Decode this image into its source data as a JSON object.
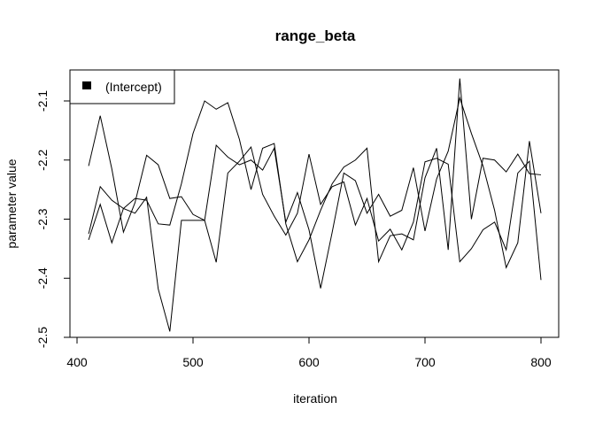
{
  "chart_data": {
    "type": "line",
    "title": "range_beta",
    "xlabel": "iteration",
    "ylabel": "parameter value",
    "xlim": [
      400,
      805
    ],
    "ylim": [
      -2.5,
      -2.05
    ],
    "x_ticks": [
      "400",
      "500",
      "600",
      "700",
      "800"
    ],
    "x_tick_values": [
      400,
      500,
      600,
      700,
      800
    ],
    "y_ticks": [
      "-2.5",
      "-2.4",
      "-2.3",
      "-2.2",
      "-2.1"
    ],
    "y_tick_values": [
      -2.5,
      -2.4,
      -2.3,
      -2.2,
      -2.1
    ],
    "legend": {
      "label": "(Intercept)",
      "position": "top-left"
    },
    "grid": false,
    "color": "#000000",
    "x": [
      410,
      420,
      430,
      440,
      450,
      460,
      470,
      480,
      490,
      500,
      510,
      520,
      530,
      540,
      550,
      560,
      570,
      580,
      590,
      600,
      610,
      620,
      630,
      640,
      650,
      660,
      670,
      680,
      690,
      700,
      710,
      720,
      730,
      740,
      750,
      760,
      770,
      780,
      790,
      800
    ],
    "series": [
      {
        "values": [
          -2.21,
          -2.125,
          -2.215,
          -2.322,
          -2.272,
          -2.192,
          -2.208,
          -2.265,
          -2.262,
          -2.292,
          -2.302,
          -2.175,
          -2.195,
          -2.208,
          -2.2,
          -2.217,
          -2.18,
          -2.305,
          -2.255,
          -2.318,
          -2.417,
          -2.322,
          -2.222,
          -2.235,
          -2.29,
          -2.258,
          -2.295,
          -2.285,
          -2.213,
          -2.32,
          -2.232,
          -2.185,
          -2.095,
          -2.155,
          -2.21,
          -2.285,
          -2.382,
          -2.34,
          -2.168,
          -2.29
        ]
      },
      {
        "values": [
          -2.335,
          -2.275,
          -2.34,
          -2.282,
          -2.265,
          -2.268,
          -2.308,
          -2.31,
          -2.24,
          -2.155,
          -2.1,
          -2.114,
          -2.103,
          -2.165,
          -2.25,
          -2.18,
          -2.172,
          -2.308,
          -2.372,
          -2.335,
          -2.285,
          -2.24,
          -2.212,
          -2.2,
          -2.18,
          -2.372,
          -2.328,
          -2.325,
          -2.335,
          -2.23,
          -2.18,
          -2.352,
          -2.062,
          -2.3,
          -2.197,
          -2.2,
          -2.22,
          -2.19,
          -2.223,
          -2.225
        ]
      },
      {
        "values": [
          -2.325,
          -2.245,
          -2.268,
          -2.282,
          -2.29,
          -2.263,
          -2.418,
          -2.49,
          -2.302,
          -2.302,
          -2.302,
          -2.373,
          -2.222,
          -2.202,
          -2.178,
          -2.258,
          -2.295,
          -2.327,
          -2.29,
          -2.19,
          -2.275,
          -2.245,
          -2.237,
          -2.31,
          -2.265,
          -2.337,
          -2.317,
          -2.352,
          -2.305,
          -2.203,
          -2.197,
          -2.207,
          -2.372,
          -2.35,
          -2.318,
          -2.305,
          -2.352,
          -2.222,
          -2.202,
          -2.403
        ]
      }
    ]
  }
}
